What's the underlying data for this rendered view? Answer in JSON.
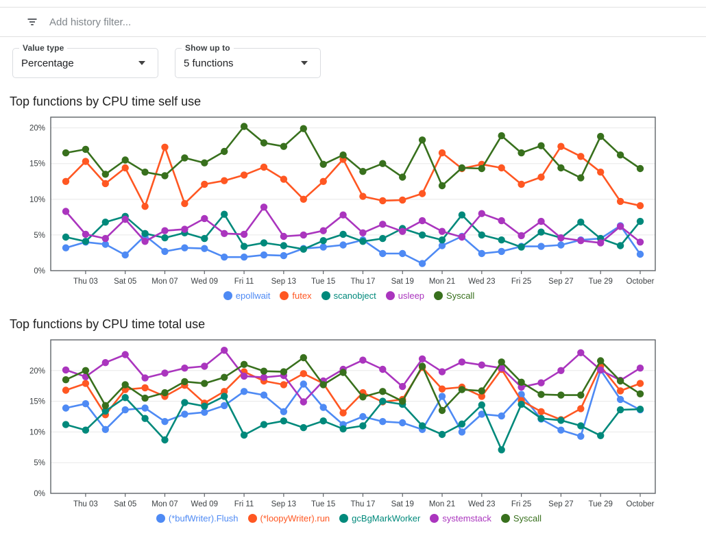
{
  "filter_bar": {
    "placeholder": "Add history filter...",
    "icon": "filter-list-icon"
  },
  "controls": [
    {
      "label": "Value type",
      "value": "Percentage"
    },
    {
      "label": "Show up to",
      "value": "5 functions"
    }
  ],
  "palette": {
    "blue": "#4e8af4",
    "orange": "#ff5722",
    "teal": "#00897b",
    "purple": "#aa35be",
    "green": "#38701d"
  },
  "chart_data": [
    {
      "type": "line",
      "title": "Top functions by CPU time self use",
      "xlabel": "",
      "ylabel": "",
      "ylim": [
        0,
        21.5
      ],
      "y_ticks": [
        0,
        5,
        10,
        15,
        20
      ],
      "y_tick_labels": [
        "0%",
        "5%",
        "10%",
        "15%",
        "20%"
      ],
      "grid": true,
      "legend_position": "bottom",
      "x_tick_labels": [
        "Thu 03",
        "Sat 05",
        "Mon 07",
        "Wed 09",
        "Fri 11",
        "Sep 13",
        "Tue 15",
        "Thu 17",
        "Sat 19",
        "Mon 21",
        "Wed 23",
        "Fri 25",
        "Sep 27",
        "Tue 29",
        "October"
      ],
      "series": [
        {
          "name": "epollwait",
          "color": "#4e8af4",
          "values": [
            3.2,
            4.0,
            3.7,
            2.2,
            4.9,
            2.7,
            3.2,
            3.1,
            1.9,
            1.9,
            2.2,
            2.1,
            3.1,
            3.3,
            3.6,
            4.3,
            2.4,
            2.4,
            1.0,
            3.5,
            4.8,
            2.4,
            2.7,
            3.4,
            3.4,
            3.6,
            4.3,
            4.5,
            6.3,
            2.3
          ]
        },
        {
          "name": "futex",
          "color": "#ff5722",
          "values": [
            12.5,
            15.3,
            12.2,
            14.4,
            9.0,
            17.3,
            9.4,
            12.1,
            12.6,
            13.4,
            14.5,
            12.8,
            10.0,
            12.5,
            15.6,
            10.4,
            9.8,
            9.9,
            10.8,
            16.5,
            14.3,
            14.9,
            14.4,
            12.1,
            13.1,
            17.4,
            16.0,
            13.8,
            9.7,
            9.1
          ]
        },
        {
          "name": "scanobject",
          "color": "#00897b",
          "values": [
            4.7,
            4.1,
            6.8,
            7.6,
            5.2,
            4.6,
            5.3,
            4.5,
            7.9,
            3.4,
            3.9,
            3.5,
            3.0,
            4.2,
            5.1,
            4.1,
            4.5,
            5.9,
            5.0,
            4.3,
            7.8,
            5.0,
            4.3,
            3.3,
            5.4,
            4.6,
            6.8,
            4.5,
            3.5,
            6.9
          ]
        },
        {
          "name": "usleep",
          "color": "#aa35be",
          "values": [
            8.3,
            5.1,
            4.5,
            7.2,
            4.1,
            5.6,
            5.8,
            7.3,
            5.2,
            5.1,
            8.9,
            4.8,
            5.0,
            5.6,
            7.8,
            5.3,
            6.5,
            5.5,
            7.0,
            5.5,
            4.7,
            8.0,
            7.0,
            4.9,
            6.9,
            4.6,
            4.2,
            3.9,
            6.2,
            4.0
          ]
        },
        {
          "name": "Syscall",
          "color": "#38701d",
          "values": [
            16.5,
            17.0,
            13.5,
            15.5,
            13.8,
            13.3,
            15.8,
            15.1,
            16.7,
            20.2,
            17.9,
            17.4,
            19.9,
            14.9,
            16.2,
            13.9,
            15.0,
            13.1,
            18.3,
            11.9,
            14.4,
            14.3,
            18.9,
            16.5,
            17.5,
            14.4,
            13.0,
            18.8,
            16.2,
            14.3
          ]
        }
      ]
    },
    {
      "type": "line",
      "title": "Top functions by CPU time total use",
      "xlabel": "",
      "ylabel": "",
      "ylim": [
        0,
        25
      ],
      "y_ticks": [
        0,
        5,
        10,
        15,
        20
      ],
      "y_tick_labels": [
        "0%",
        "5%",
        "10%",
        "15%",
        "20%"
      ],
      "grid": true,
      "legend_position": "bottom",
      "x_tick_labels": [
        "Thu 03",
        "Sat 05",
        "Mon 07",
        "Wed 09",
        "Fri 11",
        "Sep 13",
        "Tue 15",
        "Thu 17",
        "Sat 19",
        "Mon 21",
        "Wed 23",
        "Fri 25",
        "Sep 27",
        "Tue 29",
        "October"
      ],
      "series": [
        {
          "name": "(*bufWriter).Flush",
          "color": "#4e8af4",
          "values": [
            13.9,
            14.6,
            10.4,
            13.6,
            13.9,
            11.7,
            12.9,
            13.2,
            14.3,
            16.6,
            16.0,
            13.3,
            17.8,
            14.0,
            11.2,
            12.5,
            11.7,
            11.5,
            10.4,
            15.8,
            10.0,
            12.9,
            12.6,
            16.1,
            12.1,
            10.3,
            9.3,
            20.1,
            15.3,
            13.6
          ]
        },
        {
          "name": "(*loopyWriter).run",
          "color": "#ff5722",
          "values": [
            16.8,
            17.9,
            12.8,
            16.9,
            17.2,
            15.8,
            17.6,
            14.7,
            16.6,
            19.8,
            18.3,
            17.7,
            19.5,
            17.9,
            13.1,
            16.4,
            14.9,
            15.3,
            20.5,
            17.0,
            17.3,
            15.8,
            20.2,
            15.1,
            13.3,
            12.0,
            13.8,
            20.7,
            16.7,
            17.9
          ]
        },
        {
          "name": "gcBgMarkWorker",
          "color": "#00897b",
          "values": [
            11.2,
            10.3,
            13.4,
            15.6,
            12.2,
            8.7,
            14.8,
            14.2,
            15.8,
            9.5,
            11.2,
            11.8,
            10.7,
            11.8,
            10.5,
            11.0,
            15.0,
            14.5,
            11.0,
            9.6,
            11.3,
            14.4,
            7.1,
            14.5,
            12.2,
            11.9,
            11.0,
            9.4,
            13.6,
            13.7
          ]
        },
        {
          "name": "systemstack",
          "color": "#aa35be",
          "values": [
            20.1,
            19.0,
            21.3,
            22.6,
            18.8,
            19.6,
            20.4,
            20.7,
            23.3,
            19.1,
            18.9,
            19.2,
            14.9,
            18.3,
            20.2,
            21.7,
            20.2,
            17.4,
            21.9,
            19.8,
            21.4,
            20.9,
            20.4,
            17.3,
            18.0,
            20.0,
            22.9,
            20.1,
            18.4,
            20.4
          ]
        },
        {
          "name": "Syscall",
          "color": "#38701d",
          "values": [
            18.5,
            20.0,
            14.3,
            17.7,
            15.5,
            16.4,
            18.2,
            17.9,
            18.9,
            21.0,
            19.9,
            19.8,
            22.1,
            17.7,
            19.7,
            15.7,
            16.6,
            15.0,
            20.7,
            13.5,
            16.9,
            16.7,
            21.4,
            18.1,
            16.1,
            16.0,
            16.0,
            21.6,
            18.3,
            16.2
          ]
        }
      ]
    }
  ]
}
